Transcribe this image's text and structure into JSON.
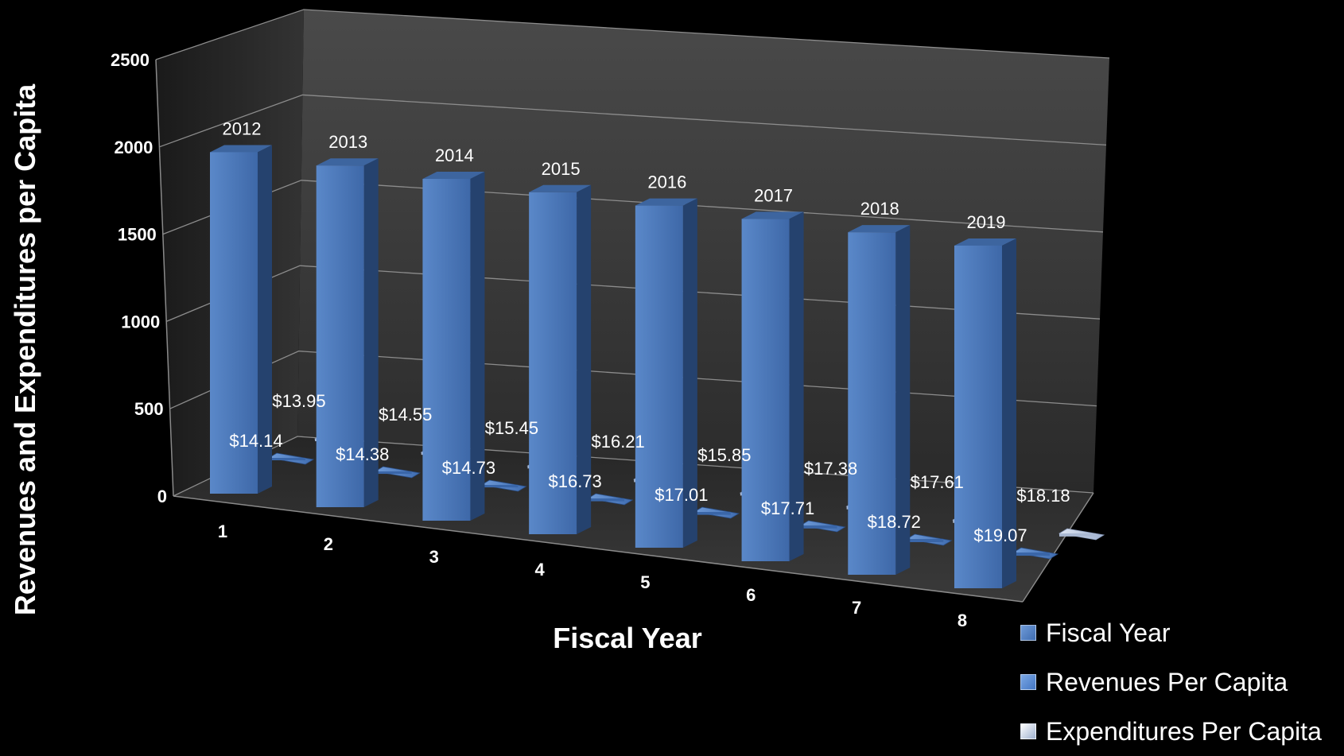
{
  "chart_data": {
    "type": "bar",
    "style": "3d-clustered-columns",
    "xlabel": "Fiscal Year",
    "ylabel": "Revenues and Expenditures per Capita",
    "ylim": [
      0,
      2500
    ],
    "yticks": [
      0,
      500,
      1000,
      1500,
      2000,
      2500
    ],
    "categories": [
      "1",
      "2",
      "3",
      "4",
      "5",
      "6",
      "7",
      "8"
    ],
    "grid": true,
    "legend_position": "bottom-right",
    "series": [
      {
        "name": "Fiscal Year",
        "color": "#4a76b8",
        "values": [
          2012,
          2013,
          2014,
          2015,
          2016,
          2017,
          2018,
          2019
        ],
        "labels": [
          "2012",
          "2013",
          "2014",
          "2015",
          "2016",
          "2017",
          "2018",
          "2019"
        ]
      },
      {
        "name": "Revenues Per Capita",
        "color": "#4f81c7",
        "values": [
          14.14,
          14.38,
          14.73,
          16.73,
          17.01,
          17.71,
          18.72,
          19.07
        ],
        "labels": [
          "$14.14",
          "$14.38",
          "$14.73",
          "$16.73",
          "$17.01",
          "$17.71",
          "$18.72",
          "$19.07"
        ]
      },
      {
        "name": "Expenditures Per Capita",
        "color": "#b9c6de",
        "values": [
          13.95,
          14.55,
          15.45,
          16.21,
          15.85,
          17.38,
          17.61,
          18.18
        ],
        "labels": [
          "$13.95",
          "$14.55",
          "$15.45",
          "$16.21",
          "$15.85",
          "$17.38",
          "$17.61",
          "$18.18"
        ]
      }
    ]
  }
}
